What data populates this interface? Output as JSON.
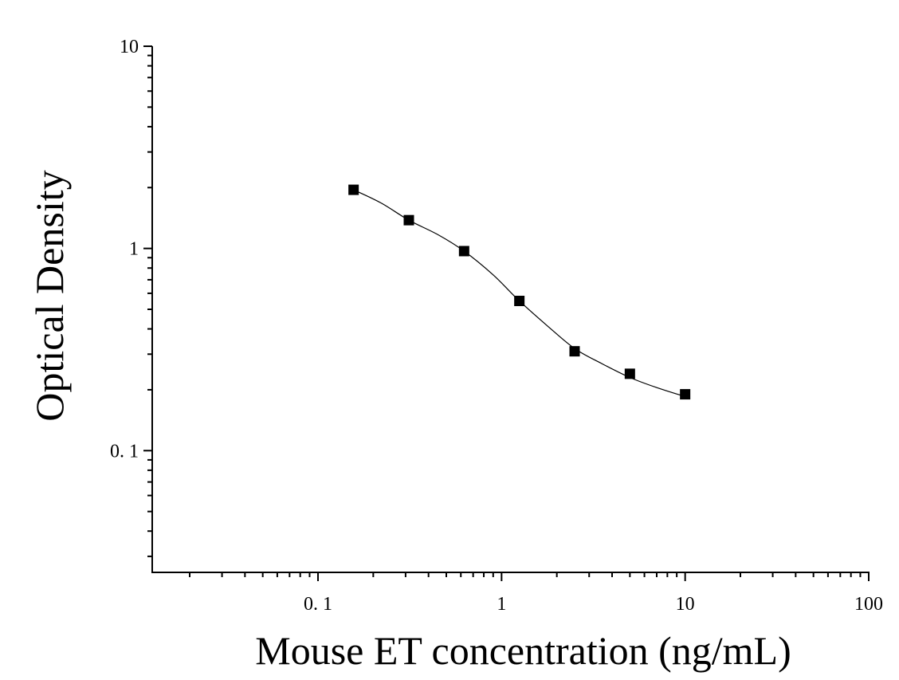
{
  "chart_data": {
    "type": "scatter",
    "title": "",
    "xlabel": "Mouse ET concentration (ng/mL)",
    "ylabel": "Optical Density",
    "xscale": "log",
    "yscale": "log",
    "xlim": [
      0.0125,
      100
    ],
    "ylim": [
      0.025,
      10
    ],
    "grid": false,
    "legend": "none",
    "x_ticks": [
      {
        "value": 0.1,
        "label": "0. 1"
      },
      {
        "value": 1,
        "label": "1"
      },
      {
        "value": 10,
        "label": "10"
      },
      {
        "value": 100,
        "label": "100"
      }
    ],
    "y_ticks": [
      {
        "value": 0.1,
        "label": "0. 1"
      },
      {
        "value": 1,
        "label": "1"
      },
      {
        "value": 10,
        "label": "10"
      }
    ],
    "series": [
      {
        "marker": "square",
        "color": "#000000",
        "points": [
          {
            "x": 0.15625,
            "y": 1.95
          },
          {
            "x": 0.3125,
            "y": 1.38
          },
          {
            "x": 0.625,
            "y": 0.97
          },
          {
            "x": 1.25,
            "y": 0.55
          },
          {
            "x": 2.5,
            "y": 0.31
          },
          {
            "x": 5,
            "y": 0.24
          },
          {
            "x": 10,
            "y": 0.19
          }
        ]
      }
    ],
    "fit_curve": {
      "color": "#000000",
      "points": [
        {
          "x": 0.15625,
          "y": 1.95
        },
        {
          "x": 0.22,
          "y": 1.68
        },
        {
          "x": 0.3125,
          "y": 1.38
        },
        {
          "x": 0.45,
          "y": 1.17
        },
        {
          "x": 0.625,
          "y": 0.97
        },
        {
          "x": 0.9,
          "y": 0.74
        },
        {
          "x": 1.25,
          "y": 0.55
        },
        {
          "x": 1.8,
          "y": 0.41
        },
        {
          "x": 2.5,
          "y": 0.32
        },
        {
          "x": 3.5,
          "y": 0.27
        },
        {
          "x": 5,
          "y": 0.23
        },
        {
          "x": 7,
          "y": 0.205
        },
        {
          "x": 10,
          "y": 0.185
        }
      ]
    }
  }
}
